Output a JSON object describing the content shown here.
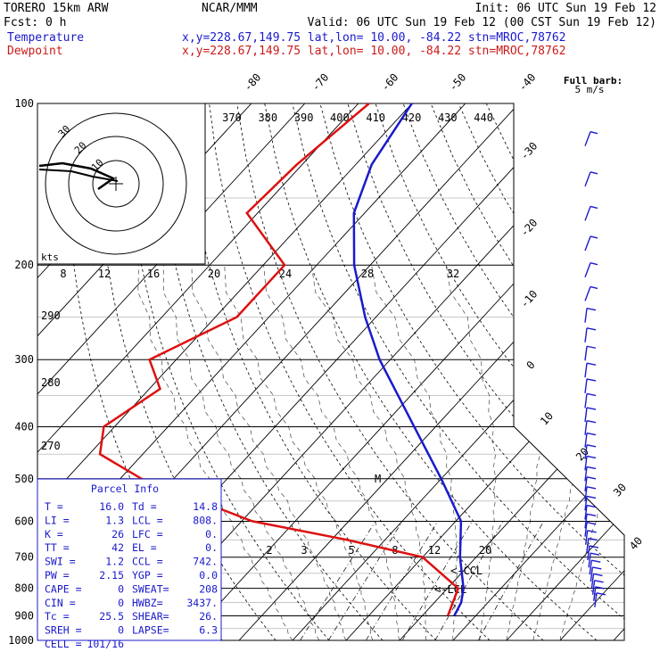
{
  "header": {
    "line1_left": "TORERO  15km ARW",
    "line1_mid": "NCAR/MMM",
    "line1_right": "Init: 06 UTC Sun 19 Feb 12",
    "line2_left": "Fcst:     0 h",
    "line2_right": "Valid: 06 UTC Sun 19 Feb 12 (00 CST Sun 19 Feb 12)",
    "temp_label": "Temperature",
    "dew_label": "Dewpoint",
    "temp_info": "x,y=228.67,149.75   lat,lon= 10.00, -84.22  stn=MROC,78762",
    "dew_info": "x,y=228.67,149.75   lat,lon= 10.00, -84.22  stn=MROC,78762"
  },
  "barb_legend": {
    "line1": "Full barb:",
    "line2": "5 m/s"
  },
  "hodograph": {
    "ring_labels": [
      "10",
      "20",
      "30"
    ],
    "units_label": "kts"
  },
  "colors": {
    "temperature": "#1a1acc",
    "dewpoint": "#dd1111",
    "parcel_box": "#1a1acc"
  },
  "chart_data": {
    "type": "skew-t",
    "pressure_levels": [
      "100",
      "200",
      "300",
      "400",
      "500",
      "600",
      "700",
      "800",
      "900",
      "1000"
    ],
    "isotherm_labels": [
      "-80",
      "-70",
      "-60",
      "-50",
      "-40",
      "-30",
      "-20",
      "-10",
      "0",
      "10",
      "20",
      "30",
      "40"
    ],
    "theta_labels": [
      "370",
      "380",
      "390",
      "400",
      "410",
      "420",
      "430",
      "440"
    ],
    "theta_e_labels": [
      "8",
      "12",
      "16",
      "20",
      "24",
      "28",
      "32"
    ],
    "theta_left_labels": [
      "290",
      "280",
      "270"
    ],
    "mixing_ratio_labels": [
      "2",
      "3",
      "5",
      "8",
      "12",
      "20"
    ],
    "level_markers": [
      "<-CCL",
      "<-LCL"
    ],
    "m_marker": "M",
    "temperature": [
      [
        100,
        -80
      ],
      [
        130,
        -77
      ],
      [
        160,
        -72
      ],
      [
        200,
        -63
      ],
      [
        250,
        -52
      ],
      [
        300,
        -42
      ],
      [
        400,
        -24
      ],
      [
        500,
        -10
      ],
      [
        600,
        1
      ],
      [
        700,
        7
      ],
      [
        800,
        13
      ],
      [
        850,
        15
      ],
      [
        900,
        16
      ]
    ],
    "dewpoint": [
      [
        100,
        -88
      ],
      [
        130,
        -91
      ],
      [
        160,
        -92
      ],
      [
        200,
        -76
      ],
      [
        250,
        -76
      ],
      [
        300,
        -85
      ],
      [
        340,
        -78
      ],
      [
        400,
        -82
      ],
      [
        450,
        -78
      ],
      [
        500,
        -66
      ],
      [
        600,
        -38
      ],
      [
        650,
        -17
      ],
      [
        700,
        0
      ],
      [
        800,
        12
      ],
      [
        900,
        14.8
      ]
    ],
    "wind_barbs_count": 34
  },
  "parcel_info": {
    "title": "Parcel Info",
    "rows": [
      [
        "T  =",
        "16.0",
        "Td =",
        "14.8"
      ],
      [
        "LI =",
        "1.3",
        "LCL =",
        "808."
      ],
      [
        "K  =",
        "26",
        "LFC =",
        "0."
      ],
      [
        "TT =",
        "42",
        "EL  =",
        "0."
      ],
      [
        "SWI =",
        "1.2",
        "CCL =",
        "742."
      ],
      [
        "PW =",
        "2.15",
        "YGP =",
        "0.0"
      ],
      [
        "CAPE =",
        "0",
        "SWEAT=",
        "208"
      ],
      [
        "CIN =",
        "0",
        "HWBZ=",
        "3437."
      ],
      [
        "Tc =",
        "25.5",
        "SHEAR=",
        "26."
      ],
      [
        "SREH =",
        "0",
        "LAPSE=",
        "6.3"
      ],
      [
        "CELL =",
        "101/16",
        "",
        ""
      ]
    ]
  }
}
